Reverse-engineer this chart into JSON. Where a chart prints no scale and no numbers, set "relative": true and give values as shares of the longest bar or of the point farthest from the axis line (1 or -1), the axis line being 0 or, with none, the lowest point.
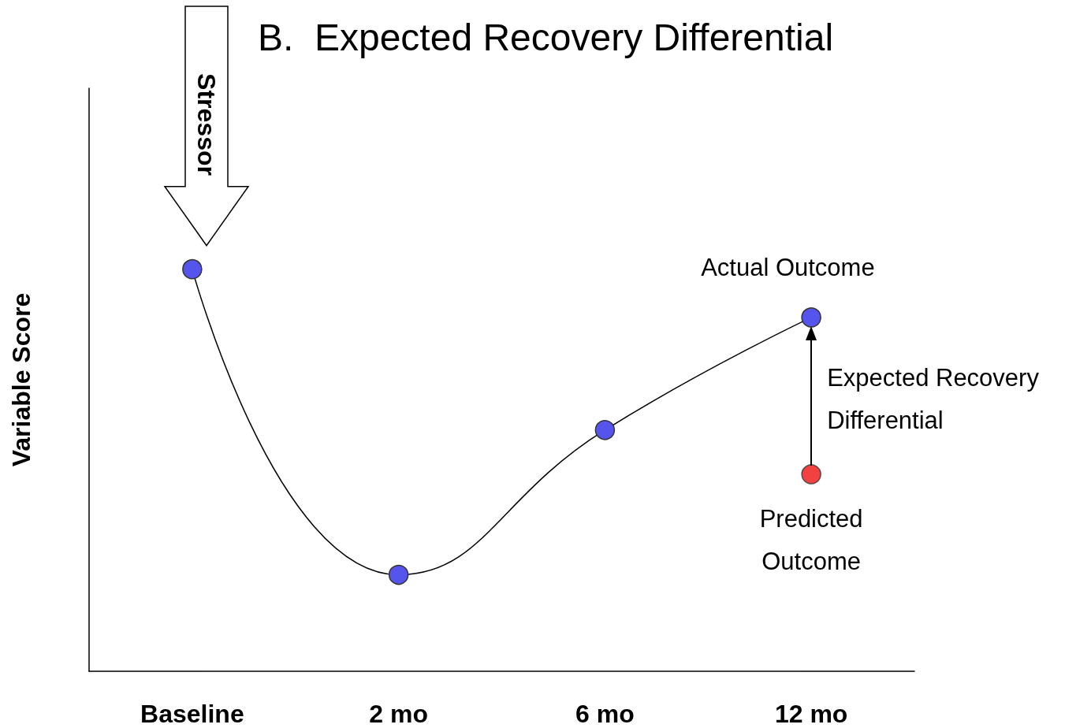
{
  "chart_data": {
    "type": "line",
    "title": "B.  Expected Recovery Differential",
    "ylabel": "Variable Score",
    "relative": true,
    "categories": [
      "Baseline",
      "2 mo",
      "6 mo",
      "12 mo"
    ],
    "series": [
      {
        "color": "#5555ee",
        "values": [
          1,
          0.24,
          0.6,
          0.88
        ]
      },
      {
        "type": "scatter",
        "color": "#ee1111",
        "x": [
          "12 mo"
        ],
        "values": [
          0.49
        ]
      }
    ],
    "marker": "circle",
    "tick_labels": "x",
    "annotations": [
      "Stressor",
      {
        "text": "Actual Outcome",
        "x": "12 mo",
        "y": 0.88
      },
      "Expected Recovery Differential",
      {
        "text": "Predicted Outcome",
        "x": "12 mo",
        "y": 0.49
      }
    ]
  }
}
